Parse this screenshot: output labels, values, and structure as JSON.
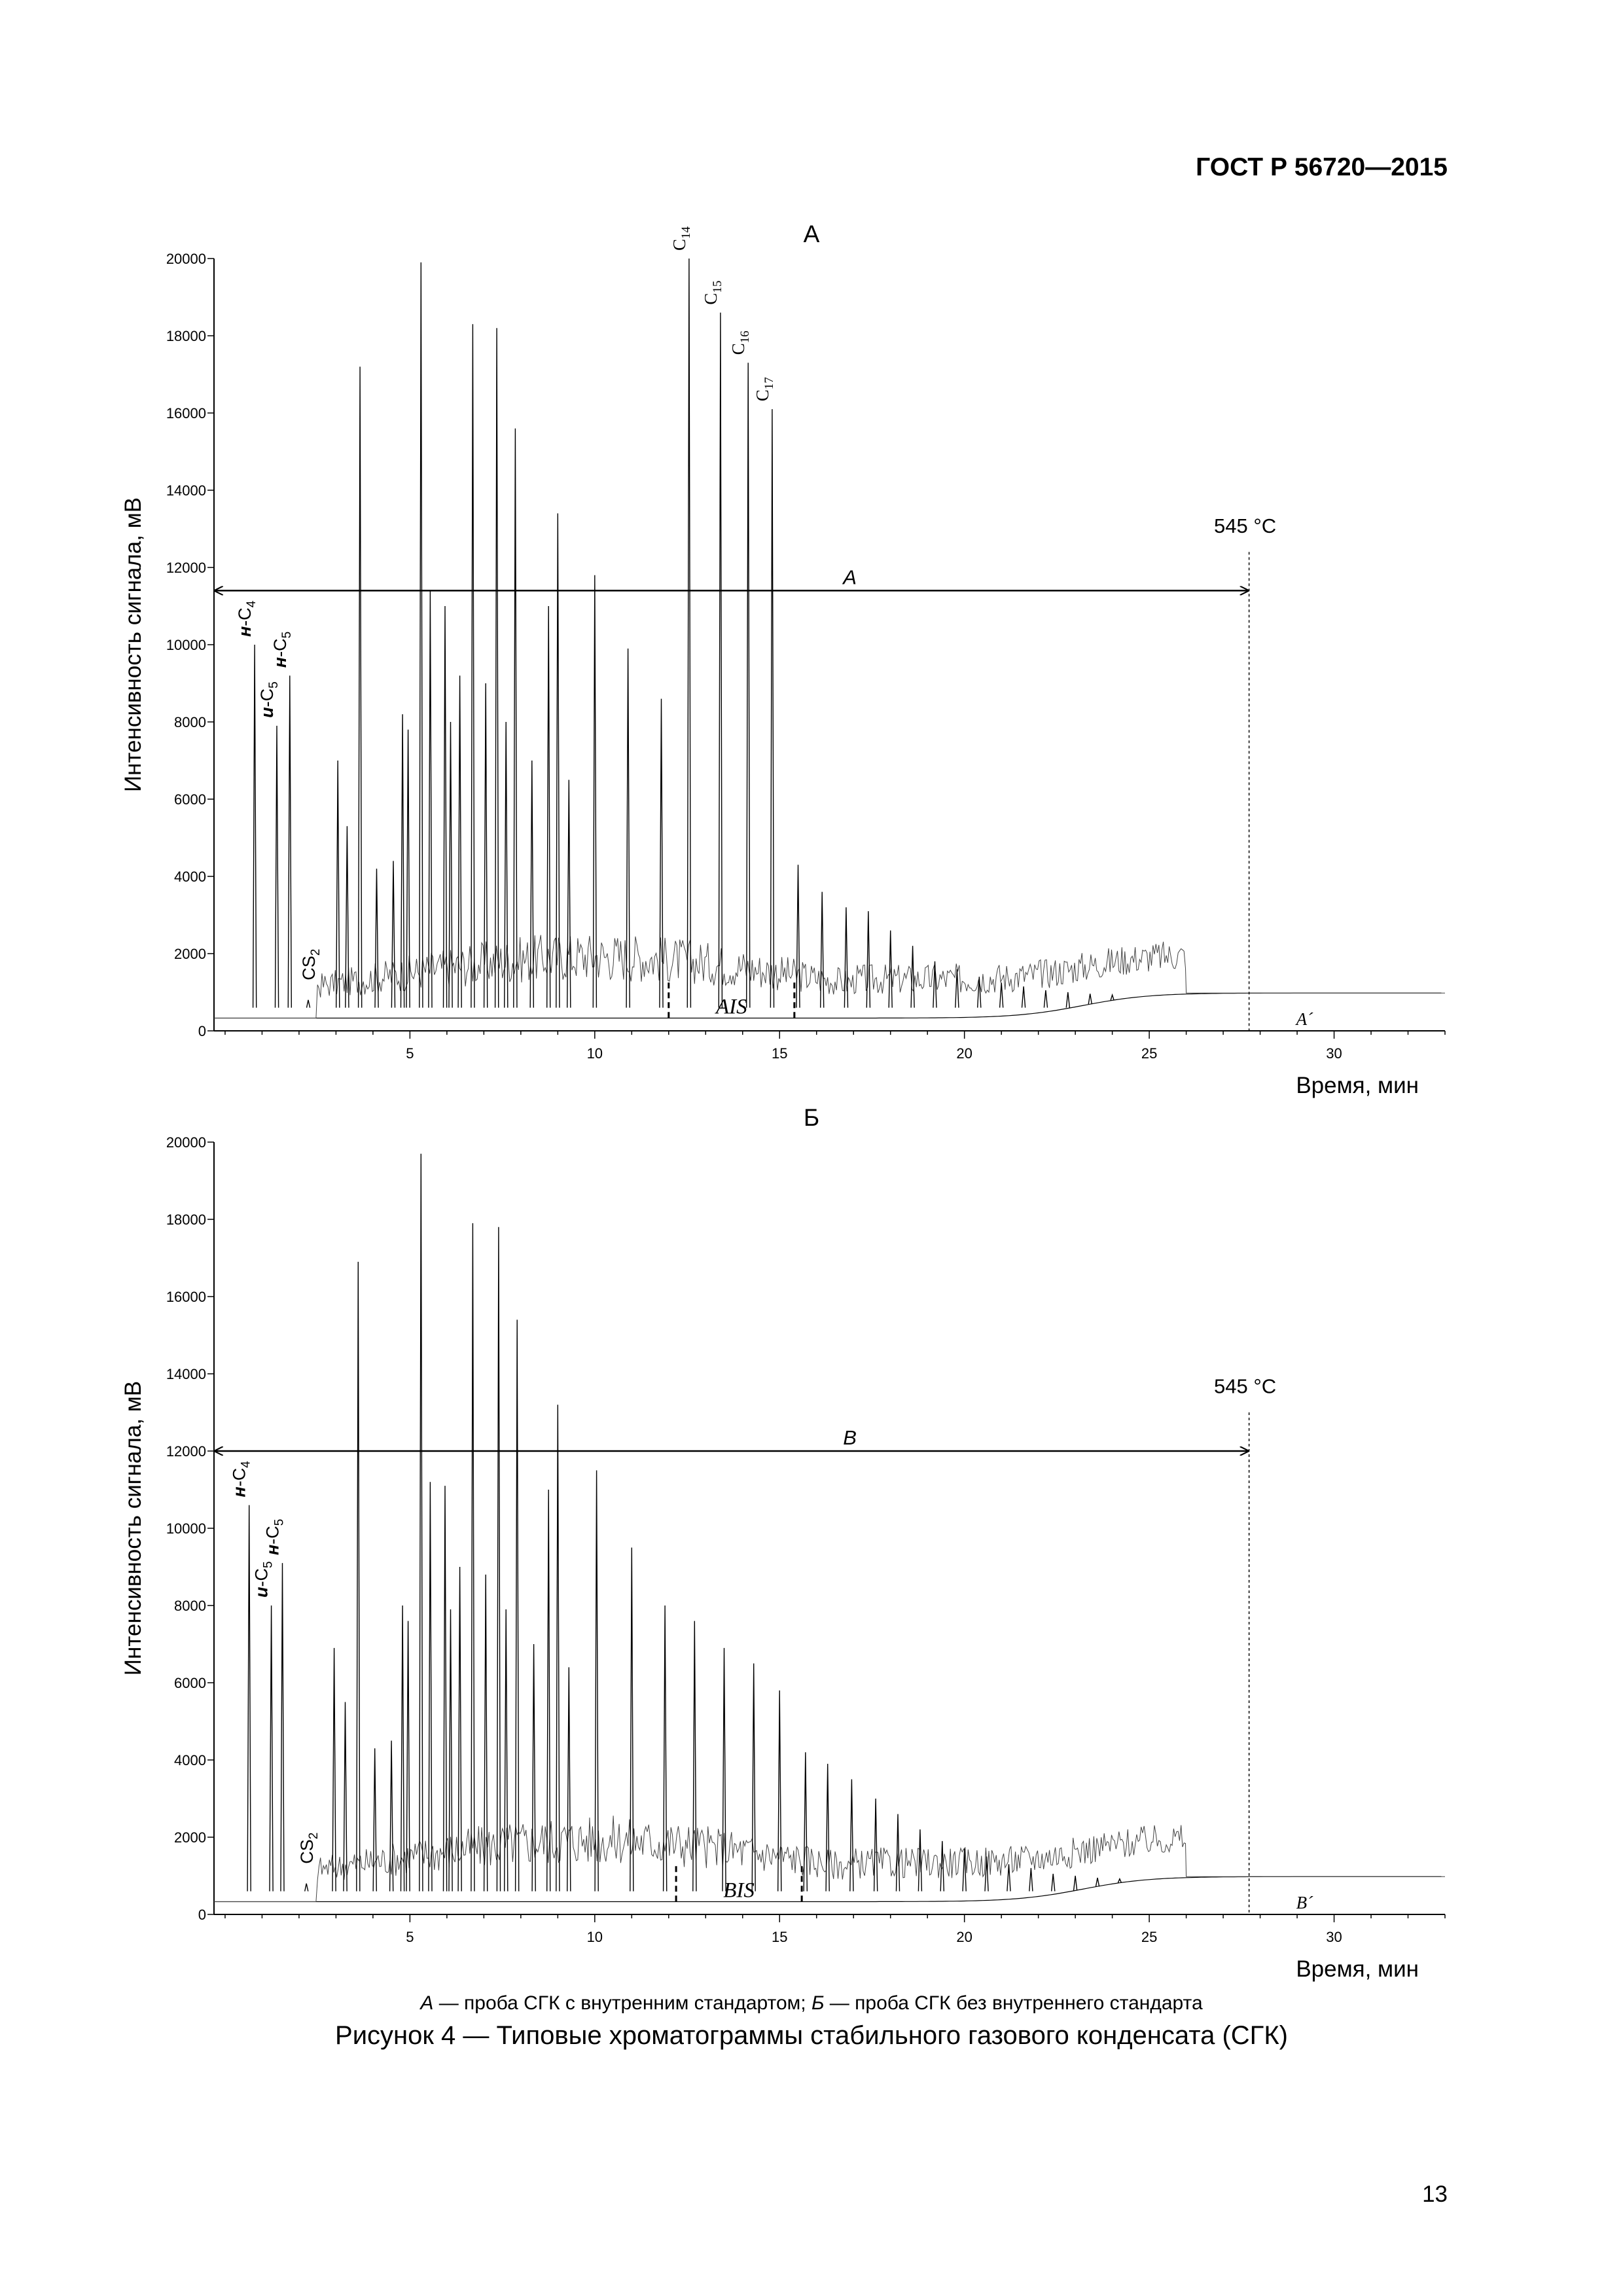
{
  "header": {
    "standard": "ГОСТ Р 56720—2015"
  },
  "page_number": "13",
  "caption": {
    "legend_a_letter": "А",
    "legend_a_text": " — проба СГК с внутренним стандартом; ",
    "legend_b_letter": "Б",
    "legend_b_text": " — проба СГК без внутреннего стандарта",
    "figure_title": "Рисунок 4 — Типовые хроматограммы стабильного газового конденсата (СГК)"
  },
  "chart_data": [
    {
      "type": "line",
      "panel_label": "А",
      "xlabel": "Время, мин",
      "ylabel": "Интенсивность сигнала, мВ",
      "xlim": [
        -0.3,
        33
      ],
      "ylim": [
        0,
        20000
      ],
      "x_ticks": [
        5,
        10,
        15,
        20,
        25,
        30
      ],
      "y_ticks": [
        0,
        2000,
        4000,
        6000,
        8000,
        10000,
        12000,
        14000,
        16000,
        18000,
        20000
      ],
      "cutoff_label": "545 °C",
      "cutoff_time": 27.7,
      "range_arrow": {
        "label": "A",
        "from": -0.3,
        "to": 27.7,
        "y": 11400
      },
      "integration_label": "AIS",
      "integration_bounds": [
        12.0,
        15.4
      ],
      "baseline_label": "A´",
      "peaks": [
        {
          "x": 0.8,
          "y": 10000,
          "label": "н-C4"
        },
        {
          "x": 1.4,
          "y": 7900,
          "label": "и-C5"
        },
        {
          "x": 1.75,
          "y": 9200,
          "label": "н-C5"
        },
        {
          "x": 2.25,
          "y": 800,
          "label": "CS2"
        },
        {
          "x": 3.05,
          "y": 7000
        },
        {
          "x": 3.3,
          "y": 5300
        },
        {
          "x": 3.65,
          "y": 17200
        },
        {
          "x": 4.1,
          "y": 4200
        },
        {
          "x": 4.55,
          "y": 4400
        },
        {
          "x": 4.8,
          "y": 8200
        },
        {
          "x": 4.95,
          "y": 7800
        },
        {
          "x": 5.3,
          "y": 19900
        },
        {
          "x": 5.55,
          "y": 11400
        },
        {
          "x": 5.95,
          "y": 11000
        },
        {
          "x": 6.1,
          "y": 8000
        },
        {
          "x": 6.35,
          "y": 9200
        },
        {
          "x": 6.7,
          "y": 18300
        },
        {
          "x": 7.05,
          "y": 9000
        },
        {
          "x": 7.35,
          "y": 18200
        },
        {
          "x": 7.6,
          "y": 8000
        },
        {
          "x": 7.85,
          "y": 15600
        },
        {
          "x": 8.3,
          "y": 7000
        },
        {
          "x": 8.75,
          "y": 11000
        },
        {
          "x": 9.0,
          "y": 13400
        },
        {
          "x": 9.3,
          "y": 6500
        },
        {
          "x": 10.0,
          "y": 11800
        },
        {
          "x": 10.9,
          "y": 9900
        },
        {
          "x": 11.8,
          "y": 8600
        },
        {
          "x": 12.55,
          "y": 20000,
          "label": "C14"
        },
        {
          "x": 13.4,
          "y": 18600,
          "label": "C15"
        },
        {
          "x": 14.15,
          "y": 17300,
          "label": "C16"
        },
        {
          "x": 14.8,
          "y": 16100,
          "label": "C17"
        },
        {
          "x": 15.5,
          "y": 4300
        },
        {
          "x": 16.15,
          "y": 3600
        },
        {
          "x": 16.8,
          "y": 3200
        },
        {
          "x": 17.4,
          "y": 3100
        },
        {
          "x": 18.0,
          "y": 2600
        },
        {
          "x": 18.6,
          "y": 2200
        },
        {
          "x": 19.2,
          "y": 1800
        },
        {
          "x": 19.8,
          "y": 1600
        },
        {
          "x": 20.4,
          "y": 1400
        },
        {
          "x": 21.0,
          "y": 1250
        },
        {
          "x": 21.6,
          "y": 1150
        },
        {
          "x": 22.2,
          "y": 1050
        },
        {
          "x": 22.8,
          "y": 1000
        },
        {
          "x": 23.4,
          "y": 960
        },
        {
          "x": 24.0,
          "y": 930
        }
      ]
    },
    {
      "type": "line",
      "panel_label": "Б",
      "xlabel": "Время, мин",
      "ylabel": "Интенсивность сигнала, мВ",
      "xlim": [
        -0.3,
        33
      ],
      "ylim": [
        0,
        20000
      ],
      "x_ticks": [
        5,
        10,
        15,
        20,
        25,
        30
      ],
      "y_ticks": [
        0,
        2000,
        4000,
        6000,
        8000,
        10000,
        12000,
        14000,
        16000,
        18000,
        20000
      ],
      "cutoff_label": "545 °C",
      "cutoff_time": 27.7,
      "range_arrow": {
        "label": "B",
        "from": -0.3,
        "to": 27.7,
        "y": 12000
      },
      "integration_label": "BIS",
      "integration_bounds": [
        12.2,
        15.6
      ],
      "baseline_label": "B´",
      "peaks": [
        {
          "x": 0.65,
          "y": 10600,
          "label": "н-C4"
        },
        {
          "x": 1.25,
          "y": 8000,
          "label": "и-C5"
        },
        {
          "x": 1.55,
          "y": 9100,
          "label": "н-C5"
        },
        {
          "x": 2.2,
          "y": 800,
          "label": "CS2"
        },
        {
          "x": 2.95,
          "y": 6900
        },
        {
          "x": 3.25,
          "y": 5500
        },
        {
          "x": 3.6,
          "y": 16900
        },
        {
          "x": 4.05,
          "y": 4300
        },
        {
          "x": 4.5,
          "y": 4500
        },
        {
          "x": 4.8,
          "y": 8000
        },
        {
          "x": 4.95,
          "y": 7600
        },
        {
          "x": 5.3,
          "y": 19700
        },
        {
          "x": 5.55,
          "y": 11200
        },
        {
          "x": 5.95,
          "y": 11100
        },
        {
          "x": 6.1,
          "y": 7900
        },
        {
          "x": 6.35,
          "y": 9000
        },
        {
          "x": 6.7,
          "y": 17900
        },
        {
          "x": 7.05,
          "y": 8800
        },
        {
          "x": 7.4,
          "y": 17800
        },
        {
          "x": 7.6,
          "y": 7900
        },
        {
          "x": 7.9,
          "y": 15400
        },
        {
          "x": 8.35,
          "y": 7000
        },
        {
          "x": 8.75,
          "y": 11000
        },
        {
          "x": 9.0,
          "y": 13200
        },
        {
          "x": 9.3,
          "y": 6400
        },
        {
          "x": 10.05,
          "y": 11500
        },
        {
          "x": 11.0,
          "y": 9500
        },
        {
          "x": 11.9,
          "y": 8000
        },
        {
          "x": 12.7,
          "y": 7600
        },
        {
          "x": 13.5,
          "y": 6900
        },
        {
          "x": 14.3,
          "y": 6500
        },
        {
          "x": 15.0,
          "y": 5800
        },
        {
          "x": 15.7,
          "y": 4200
        },
        {
          "x": 16.3,
          "y": 3900
        },
        {
          "x": 16.95,
          "y": 3500
        },
        {
          "x": 17.6,
          "y": 3000
        },
        {
          "x": 18.2,
          "y": 2600
        },
        {
          "x": 18.8,
          "y": 2200
        },
        {
          "x": 19.4,
          "y": 1900
        },
        {
          "x": 20.0,
          "y": 1700
        },
        {
          "x": 20.6,
          "y": 1500
        },
        {
          "x": 21.2,
          "y": 1300
        },
        {
          "x": 21.8,
          "y": 1200
        },
        {
          "x": 22.4,
          "y": 1050
        },
        {
          "x": 23.0,
          "y": 1000
        },
        {
          "x": 23.6,
          "y": 950
        },
        {
          "x": 24.2,
          "y": 920
        }
      ]
    }
  ]
}
